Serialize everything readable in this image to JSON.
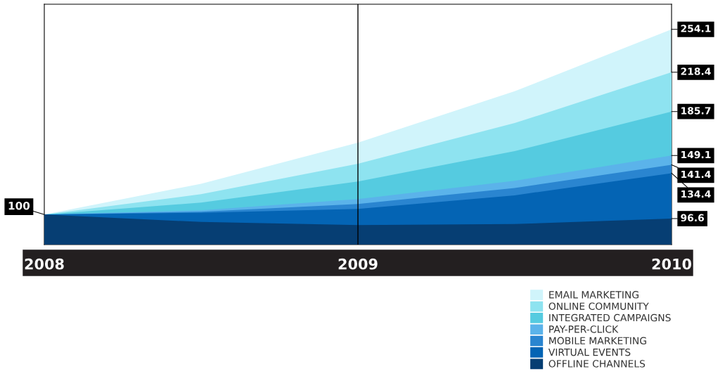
{
  "chart_data": {
    "type": "area",
    "x": [
      2008,
      2008.5,
      2009,
      2009.5,
      2010
    ],
    "xlim": [
      2008,
      2010
    ],
    "xticks": [
      2008,
      2009,
      2010
    ],
    "ylim": [
      75,
      275
    ],
    "tick_labels": "x",
    "grid": false,
    "legend": "bottom right",
    "series": [
      {
        "name": "EMAIL MARKETING",
        "color": "#d0f4fb",
        "values": [
          100,
          125.6,
          159.8,
          202.6,
          254.1
        ],
        "value_labels": [
          null,
          null,
          null,
          null,
          "254.1"
        ]
      },
      {
        "name": "ONLINE COMMUNITY",
        "color": "#8ee3f0",
        "values": [
          100,
          116.9,
          142.2,
          176.1,
          218.4
        ],
        "value_labels": [
          null,
          null,
          null,
          null,
          "218.4"
        ]
      },
      {
        "name": "INTEGRATED CAMPAIGNS",
        "color": "#55cbe0",
        "values": [
          100,
          109.9,
          127.5,
          152.8,
          185.7
        ],
        "value_labels": [
          null,
          null,
          null,
          null,
          "185.7"
        ]
      },
      {
        "name": "PAY-PER-CLICK",
        "color": "#5bb3ea",
        "values": [
          100,
          103.5,
          112.9,
          128.1,
          149.1
        ],
        "value_labels": [
          null,
          null,
          null,
          null,
          "149.1"
        ]
      },
      {
        "name": "MOBILE MARKETING",
        "color": "#2a85d0",
        "values": [
          100,
          102.4,
          108.8,
          122.1,
          141.4
        ],
        "value_labels": [
          null,
          null,
          null,
          null,
          "141.4"
        ]
      },
      {
        "name": "VIRTUAL EVENTS",
        "color": "#0464b4",
        "values": [
          100,
          101.5,
          104.7,
          116.0,
          134.4
        ],
        "value_labels": [
          null,
          null,
          null,
          null,
          "134.4"
        ]
      },
      {
        "name": "OFFLINE CHANNELS",
        "color": "#063e73",
        "values": [
          100,
          93.8,
          91.2,
          92.1,
          96.6
        ],
        "value_labels": [
          null,
          null,
          null,
          null,
          "96.6"
        ]
      }
    ],
    "ref_lines": [
      {
        "axis": "x",
        "value": 2009,
        "color": "#000000"
      }
    ],
    "annotations": [
      {
        "text": "100",
        "x": 2008,
        "y": 100
      }
    ]
  }
}
